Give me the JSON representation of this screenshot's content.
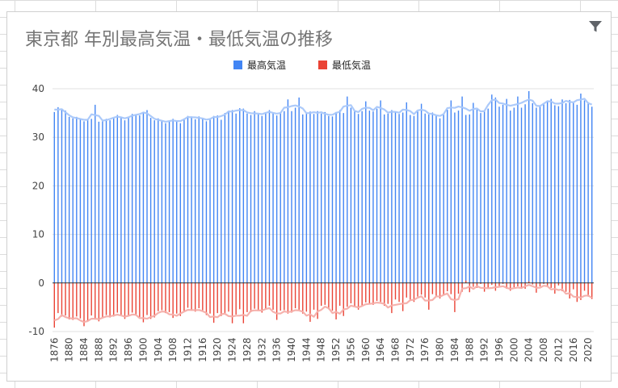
{
  "chart_data": {
    "type": "bar",
    "title": "東京都 年別最高気温・最低気温の推移",
    "legend": {
      "placement": "top-center",
      "entries": [
        "最高気温",
        "最低気温"
      ]
    },
    "colors": {
      "max_bar": "#4285f4",
      "max_trend": "#a8c7fa",
      "min_bar": "#ea4335",
      "min_trend": "#f6aea9",
      "grid": "#e0e0e0",
      "zero_line": "#333333"
    },
    "ylim": [
      -10,
      40
    ],
    "yticks": [
      -10,
      0,
      10,
      20,
      30,
      40
    ],
    "xlabel": "",
    "ylabel": "",
    "x_tick_labels": [
      "1876",
      "1880",
      "1884",
      "1888",
      "1892",
      "1896",
      "1900",
      "1904",
      "1908",
      "1912",
      "1916",
      "1920",
      "1924",
      "1928",
      "1932",
      "1936",
      "1940",
      "1944",
      "1948",
      "1952",
      "1956",
      "1960",
      "1964",
      "1968",
      "1972",
      "1976",
      "1980",
      "1984",
      "1988",
      "1992",
      "1996",
      "2000",
      "2004",
      "2008",
      "2012",
      "2016",
      "2020"
    ],
    "x_start": 1876,
    "x_end": 2021,
    "series": [
      {
        "name": "最高気温",
        "keyframes": [
          [
            1876,
            35.5
          ],
          [
            1879,
            35.0
          ],
          [
            1882,
            34.0
          ],
          [
            1886,
            33.2
          ],
          [
            1888,
            33.0
          ],
          [
            1892,
            34.0
          ],
          [
            1896,
            34.2
          ],
          [
            1901,
            35.0
          ],
          [
            1905,
            33.0
          ],
          [
            1909,
            33.5
          ],
          [
            1915,
            34.0
          ],
          [
            1919,
            33.8
          ],
          [
            1922,
            35.0
          ],
          [
            1926,
            35.5
          ],
          [
            1930,
            34.8
          ],
          [
            1936,
            35.0
          ],
          [
            1940,
            35.5
          ],
          [
            1944,
            35.2
          ],
          [
            1948,
            34.5
          ],
          [
            1952,
            35.0
          ],
          [
            1956,
            35.5
          ],
          [
            1960,
            35.5
          ],
          [
            1964,
            35.5
          ],
          [
            1968,
            35.0
          ],
          [
            1972,
            35.0
          ],
          [
            1976,
            35.0
          ],
          [
            1980,
            34.5
          ],
          [
            1984,
            35.5
          ],
          [
            1988,
            35.0
          ],
          [
            1992,
            35.5
          ],
          [
            1996,
            36.0
          ],
          [
            2000,
            36.0
          ],
          [
            2004,
            37.0
          ],
          [
            2008,
            36.5
          ],
          [
            2012,
            36.0
          ],
          [
            2016,
            37.0
          ],
          [
            2021,
            37.0
          ]
        ],
        "spikes": [
          [
            1877,
            36.2
          ],
          [
            1887,
            36.7
          ],
          [
            1888,
            33.2
          ],
          [
            1901,
            35.6
          ],
          [
            1913,
            34.3
          ],
          [
            1921,
            33.6
          ],
          [
            1923,
            35.4
          ],
          [
            1924,
            35.6
          ],
          [
            1927,
            35.9
          ],
          [
            1930,
            35.4
          ],
          [
            1939,
            37.8
          ],
          [
            1942,
            38.2
          ],
          [
            1947,
            35.4
          ],
          [
            1953,
            35.6
          ],
          [
            1955,
            38.4
          ],
          [
            1960,
            37.4
          ],
          [
            1964,
            37.6
          ],
          [
            1971,
            37.2
          ],
          [
            1975,
            36.9
          ],
          [
            1983,
            37.6
          ],
          [
            1986,
            38.4
          ],
          [
            1989,
            37.1
          ],
          [
            1994,
            38.8
          ],
          [
            1995,
            38.2
          ],
          [
            1998,
            37.9
          ],
          [
            2001,
            38.4
          ],
          [
            2004,
            39.5
          ],
          [
            2009,
            37.6
          ],
          [
            2010,
            37.9
          ],
          [
            2013,
            37.8
          ],
          [
            2014,
            37.0
          ],
          [
            2015,
            37.7
          ],
          [
            2018,
            39.0
          ],
          [
            2020,
            37.2
          ]
        ]
      },
      {
        "name": "最低気温",
        "keyframes": [
          [
            1876,
            -8.0
          ],
          [
            1880,
            -7.0
          ],
          [
            1885,
            -7.5
          ],
          [
            1890,
            -7.0
          ],
          [
            1896,
            -6.5
          ],
          [
            1901,
            -7.0
          ],
          [
            1905,
            -6.0
          ],
          [
            1910,
            -6.0
          ],
          [
            1915,
            -5.5
          ],
          [
            1920,
            -6.5
          ],
          [
            1925,
            -6.0
          ],
          [
            1930,
            -5.5
          ],
          [
            1935,
            -5.5
          ],
          [
            1940,
            -6.0
          ],
          [
            1945,
            -5.5
          ],
          [
            1950,
            -5.0
          ],
          [
            1955,
            -5.0
          ],
          [
            1960,
            -4.5
          ],
          [
            1965,
            -4.0
          ],
          [
            1970,
            -3.5
          ],
          [
            1975,
            -3.0
          ],
          [
            1980,
            -2.5
          ],
          [
            1984,
            -2.5
          ],
          [
            1988,
            -1.5
          ],
          [
            1992,
            -1.5
          ],
          [
            1996,
            -1.0
          ],
          [
            2000,
            -1.0
          ],
          [
            2004,
            -0.5
          ],
          [
            2008,
            -0.5
          ],
          [
            2012,
            -1.0
          ],
          [
            2016,
            -1.5
          ],
          [
            2020,
            -2.5
          ],
          [
            2021,
            -2.5
          ]
        ],
        "spikes": [
          [
            1876,
            -9.2
          ],
          [
            1877,
            -6.2
          ],
          [
            1884,
            -8.9
          ],
          [
            1885,
            -7.9
          ],
          [
            1900,
            -8.1
          ],
          [
            1908,
            -7.2
          ],
          [
            1919,
            -8.2
          ],
          [
            1924,
            -8.3
          ],
          [
            1927,
            -8.3
          ],
          [
            1936,
            -7.6
          ],
          [
            1945,
            -8.0
          ],
          [
            1947,
            -7.4
          ],
          [
            1952,
            -7.5
          ],
          [
            1954,
            -6.8
          ],
          [
            1967,
            -6.2
          ],
          [
            1970,
            -5.8
          ],
          [
            1977,
            -5.5
          ],
          [
            1984,
            -6.0
          ],
          [
            1987,
            0.5
          ],
          [
            1991,
            -0.2
          ],
          [
            1994,
            -0.4
          ],
          [
            2003,
            -1.2
          ],
          [
            2006,
            -2.0
          ],
          [
            2011,
            -2.2
          ],
          [
            2015,
            -3.2
          ],
          [
            2017,
            -3.9
          ],
          [
            2018,
            -3.5
          ]
        ]
      }
    ]
  }
}
